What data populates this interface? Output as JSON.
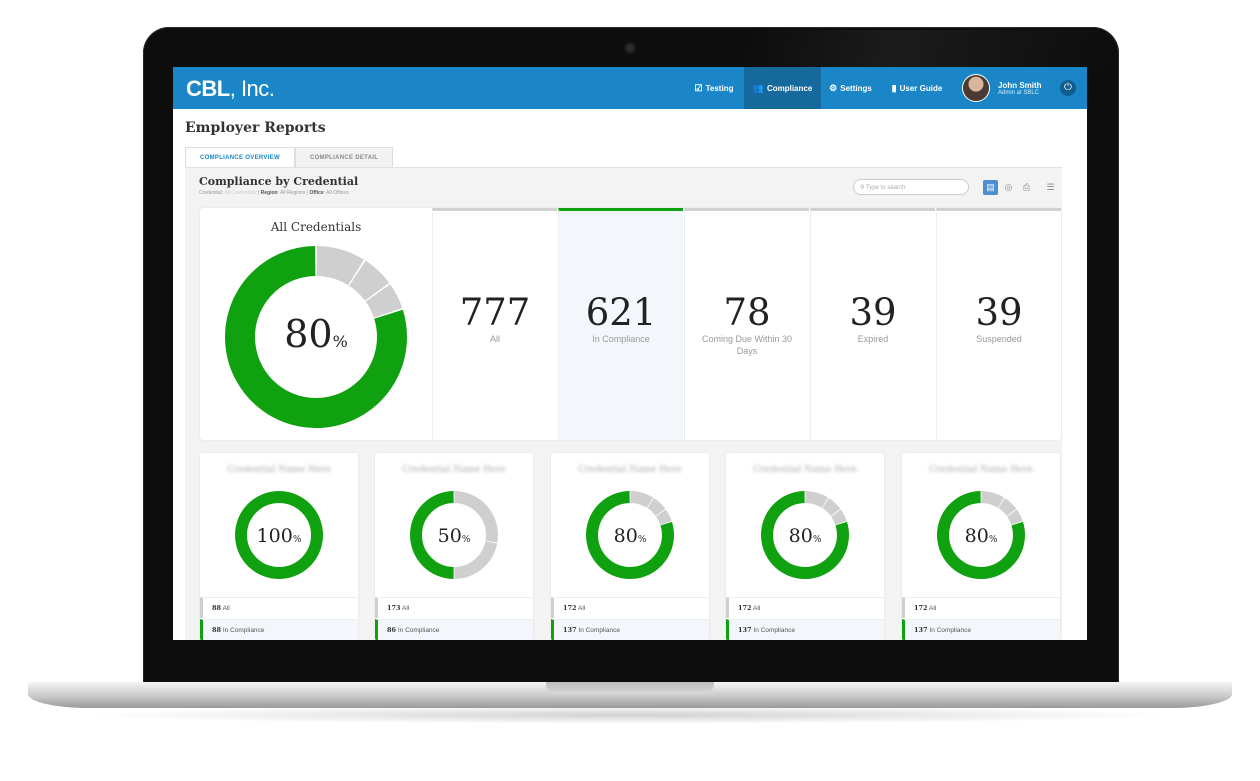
{
  "app": {
    "logo_bold": "CBL",
    "logo_rest": ", Inc."
  },
  "nav": [
    {
      "label": "Testing",
      "icon": "checkbox-icon",
      "active": false
    },
    {
      "label": "Compliance",
      "icon": "group-icon",
      "active": true
    },
    {
      "label": "Settings",
      "icon": "gear-icon",
      "active": false
    },
    {
      "label": "User Guide",
      "icon": "book-icon",
      "active": false
    }
  ],
  "user": {
    "name": "John Smith",
    "role": "Admin at SBLC"
  },
  "page": {
    "title": "Employer Reports"
  },
  "tabs": [
    {
      "label": "COMPLIANCE OVERVIEW",
      "active": true
    },
    {
      "label": "COMPLIANCE DETAIL",
      "active": false
    }
  ],
  "section": {
    "title": "Compliance by Credential",
    "filters": {
      "credential_label": "Credential",
      "credential_value": "All Credentials",
      "region_label": "Region",
      "region_value": "All Regions",
      "office_label": "Office",
      "office_value": "All Offices"
    },
    "search_placeholder": "Type to search"
  },
  "summary": {
    "title": "All Credentials",
    "percent": "80",
    "percent_sign": "%",
    "donut": {
      "compliant_fraction": 0.8,
      "gray_segments": [
        0.09,
        0.06,
        0.05
      ]
    },
    "stats": [
      {
        "value": "777",
        "label": "All"
      },
      {
        "value": "621",
        "label": "In Compliance"
      },
      {
        "value": "78",
        "label": "Coming Due Within 30 Days"
      },
      {
        "value": "39",
        "label": "Expired"
      },
      {
        "value": "39",
        "label": "Suspended"
      }
    ]
  },
  "cards": [
    {
      "name": "Credential Name Here",
      "percent": "100",
      "fraction": 1.0,
      "gray_segments": [],
      "all": "88",
      "all_label": "All",
      "compliant": "88",
      "compliant_label": "In Compliance"
    },
    {
      "name": "Credential Name Here",
      "percent": "50",
      "fraction": 0.5,
      "gray_segments": [
        0.28,
        0.22
      ],
      "all": "173",
      "all_label": "All",
      "compliant": "86",
      "compliant_label": "In Compliance"
    },
    {
      "name": "Credential Name Here",
      "percent": "80",
      "fraction": 0.8,
      "gray_segments": [
        0.09,
        0.06,
        0.05
      ],
      "all": "172",
      "all_label": "All",
      "compliant": "137",
      "compliant_label": "In Compliance"
    },
    {
      "name": "Credential Name Here",
      "percent": "80",
      "fraction": 0.8,
      "gray_segments": [
        0.09,
        0.06,
        0.05
      ],
      "all": "172",
      "all_label": "All",
      "compliant": "137",
      "compliant_label": "In Compliance"
    },
    {
      "name": "Credential Name Here",
      "percent": "80",
      "fraction": 0.8,
      "gray_segments": [
        0.09,
        0.06,
        0.05
      ],
      "all": "172",
      "all_label": "All",
      "compliant": "137",
      "compliant_label": "In Compliance"
    }
  ],
  "colors": {
    "brand": "#1a86c7",
    "compliant": "#0fa10f",
    "neutral": "#cfcfcf"
  }
}
